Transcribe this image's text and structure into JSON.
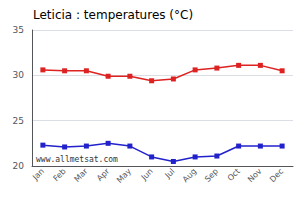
{
  "chart_data": {
    "type": "line",
    "title": "Leticia : temperatures (°C)",
    "categories": [
      "Jan",
      "Feb",
      "Mar",
      "Apr",
      "May",
      "Jun",
      "Jul",
      "Aug",
      "Sep",
      "Oct",
      "Nov",
      "Dec"
    ],
    "series": [
      {
        "color": "#dd2222",
        "marker": "square",
        "values": [
          30.6,
          30.5,
          30.5,
          29.9,
          29.9,
          29.4,
          29.6,
          30.6,
          30.8,
          31.1,
          31.1,
          30.5
        ]
      },
      {
        "color": "#2222cc",
        "marker": "square",
        "values": [
          22.3,
          22.1,
          22.2,
          22.5,
          22.2,
          21.0,
          20.5,
          21.0,
          21.1,
          22.2,
          22.2,
          22.2
        ]
      }
    ],
    "ylim": [
      20,
      35
    ],
    "yticks": [
      20,
      25,
      30,
      35
    ],
    "grid": true,
    "annotations": [
      "www.allmetsat.com"
    ]
  }
}
